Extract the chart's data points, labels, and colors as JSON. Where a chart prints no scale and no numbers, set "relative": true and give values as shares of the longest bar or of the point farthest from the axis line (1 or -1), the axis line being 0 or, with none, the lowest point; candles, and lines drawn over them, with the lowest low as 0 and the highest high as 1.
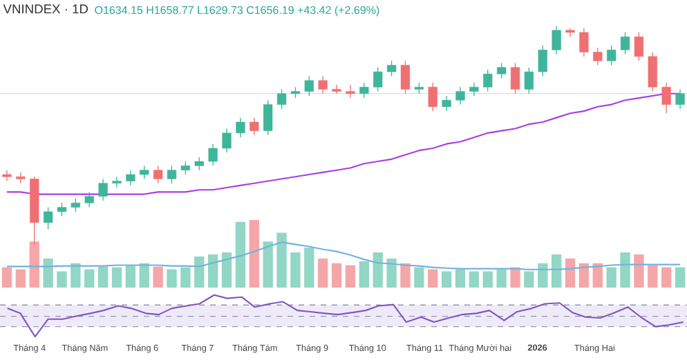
{
  "chart_data": [
    {
      "type": "candlestick",
      "relative": true,
      "title": "VNINDEX · 1D",
      "annotations": [
        "O1634.15 H1658.77 L1629.73 C1656.19 +43.42 (+2.69%)"
      ],
      "categories": [
        null,
        null,
        null,
        null,
        null,
        null,
        null,
        null,
        null,
        null,
        null,
        null,
        null,
        null,
        null,
        null,
        null,
        null,
        null,
        null,
        null,
        null,
        null,
        null,
        null,
        null,
        null,
        null,
        null,
        null,
        null,
        null,
        null,
        null,
        null,
        null,
        null,
        null,
        null,
        null,
        null,
        null,
        null,
        null,
        null,
        null,
        null,
        null,
        null,
        null
      ],
      "ohlc": [
        [
          0.32,
          0.34,
          0.29,
          0.31
        ],
        [
          0.31,
          0.33,
          0.28,
          0.3
        ],
        [
          0.3,
          0.31,
          0.0,
          0.1
        ],
        [
          0.1,
          0.17,
          0.07,
          0.15
        ],
        [
          0.15,
          0.19,
          0.13,
          0.17
        ],
        [
          0.17,
          0.21,
          0.15,
          0.19
        ],
        [
          0.19,
          0.24,
          0.17,
          0.22
        ],
        [
          0.22,
          0.3,
          0.2,
          0.28
        ],
        [
          0.28,
          0.31,
          0.26,
          0.29
        ],
        [
          0.29,
          0.34,
          0.27,
          0.32
        ],
        [
          0.32,
          0.36,
          0.3,
          0.34
        ],
        [
          0.34,
          0.36,
          0.28,
          0.3
        ],
        [
          0.3,
          0.36,
          0.28,
          0.34
        ],
        [
          0.34,
          0.38,
          0.32,
          0.36
        ],
        [
          0.36,
          0.4,
          0.34,
          0.38
        ],
        [
          0.38,
          0.46,
          0.36,
          0.44
        ],
        [
          0.44,
          0.53,
          0.42,
          0.51
        ],
        [
          0.51,
          0.58,
          0.49,
          0.56
        ],
        [
          0.56,
          0.58,
          0.5,
          0.52
        ],
        [
          0.52,
          0.66,
          0.5,
          0.64
        ],
        [
          0.64,
          0.71,
          0.62,
          0.69
        ],
        [
          0.69,
          0.72,
          0.67,
          0.7
        ],
        [
          0.7,
          0.77,
          0.68,
          0.75
        ],
        [
          0.75,
          0.77,
          0.69,
          0.71
        ],
        [
          0.71,
          0.73,
          0.69,
          0.7
        ],
        [
          0.7,
          0.73,
          0.67,
          0.69
        ],
        [
          0.69,
          0.74,
          0.67,
          0.72
        ],
        [
          0.72,
          0.81,
          0.7,
          0.79
        ],
        [
          0.79,
          0.84,
          0.77,
          0.82
        ],
        [
          0.82,
          0.84,
          0.69,
          0.71
        ],
        [
          0.71,
          0.74,
          0.69,
          0.72
        ],
        [
          0.72,
          0.74,
          0.61,
          0.63
        ],
        [
          0.63,
          0.68,
          0.61,
          0.66
        ],
        [
          0.66,
          0.72,
          0.64,
          0.7
        ],
        [
          0.7,
          0.74,
          0.68,
          0.72
        ],
        [
          0.72,
          0.8,
          0.7,
          0.78
        ],
        [
          0.78,
          0.83,
          0.76,
          0.81
        ],
        [
          0.81,
          0.83,
          0.69,
          0.71
        ],
        [
          0.71,
          0.81,
          0.69,
          0.79
        ],
        [
          0.79,
          0.91,
          0.77,
          0.89
        ],
        [
          0.89,
          1.0,
          0.87,
          0.98
        ],
        [
          0.98,
          0.99,
          0.95,
          0.97
        ],
        [
          0.97,
          0.99,
          0.86,
          0.88
        ],
        [
          0.88,
          0.9,
          0.82,
          0.84
        ],
        [
          0.84,
          0.91,
          0.82,
          0.89
        ],
        [
          0.89,
          0.97,
          0.87,
          0.95
        ],
        [
          0.95,
          0.97,
          0.84,
          0.86
        ],
        [
          0.86,
          0.88,
          0.7,
          0.72
        ],
        [
          0.72,
          0.74,
          0.6,
          0.64
        ],
        [
          0.64,
          0.71,
          0.62,
          0.69
        ]
      ],
      "colors": [
        "#ef6f72",
        "#ef6f72",
        "#ef6f72",
        "#3fb59a",
        "#3fb59a",
        "#3fb59a",
        "#3fb59a",
        "#3fb59a",
        "#3fb59a",
        "#3fb59a",
        "#3fb59a",
        "#ef6f72",
        "#3fb59a",
        "#3fb59a",
        "#3fb59a",
        "#3fb59a",
        "#3fb59a",
        "#3fb59a",
        "#ef6f72",
        "#3fb59a",
        "#3fb59a",
        "#3fb59a",
        "#3fb59a",
        "#ef6f72",
        "#ef6f72",
        "#ef6f72",
        "#3fb59a",
        "#3fb59a",
        "#3fb59a",
        "#ef6f72",
        "#3fb59a",
        "#ef6f72",
        "#3fb59a",
        "#3fb59a",
        "#3fb59a",
        "#3fb59a",
        "#3fb59a",
        "#ef6f72",
        "#3fb59a",
        "#3fb59a",
        "#3fb59a",
        "#ef6f72",
        "#ef6f72",
        "#ef6f72",
        "#3fb59a",
        "#3fb59a",
        "#ef6f72",
        "#ef6f72",
        "#ef6f72",
        "#3fb59a"
      ],
      "series": [
        {
          "type": "line",
          "color": "#a63ee6",
          "values": [
            0.24,
            0.24,
            0.23,
            0.23,
            0.23,
            0.23,
            0.23,
            0.23,
            0.23,
            0.23,
            0.23,
            0.24,
            0.24,
            0.24,
            0.25,
            0.25,
            0.26,
            0.27,
            0.28,
            0.29,
            0.3,
            0.31,
            0.32,
            0.33,
            0.34,
            0.35,
            0.37,
            0.38,
            0.39,
            0.41,
            0.43,
            0.44,
            0.46,
            0.47,
            0.49,
            0.51,
            0.52,
            0.53,
            0.55,
            0.56,
            0.58,
            0.6,
            0.61,
            0.63,
            0.64,
            0.66,
            0.67,
            0.68,
            0.69,
            0.69
          ]
        }
      ],
      "ref_lines": [
        {
          "axis": "y",
          "value": 0.69,
          "color": "#d9dde3"
        }
      ]
    },
    {
      "type": "bar",
      "relative": true,
      "categories": [
        null,
        null,
        null,
        null,
        null,
        null,
        null,
        null,
        null,
        null,
        null,
        null,
        null,
        null,
        null,
        null,
        null,
        null,
        null,
        null,
        null,
        null,
        null,
        null,
        null,
        null,
        null,
        null,
        null,
        null,
        null,
        null,
        null,
        null,
        null,
        null,
        null,
        null,
        null,
        null,
        null,
        null,
        null,
        null,
        null,
        null,
        null,
        null,
        null,
        null
      ],
      "series": [
        {
          "type": "bar",
          "values": [
            0.3,
            0.27,
            0.68,
            0.43,
            0.24,
            0.36,
            0.27,
            0.31,
            0.3,
            0.33,
            0.36,
            0.31,
            0.27,
            0.3,
            0.46,
            0.49,
            0.52,
            0.97,
            1.0,
            0.68,
            0.81,
            0.52,
            0.59,
            0.43,
            0.36,
            0.33,
            0.39,
            0.52,
            0.43,
            0.36,
            0.3,
            0.27,
            0.24,
            0.27,
            0.24,
            0.24,
            0.27,
            0.3,
            0.24,
            0.36,
            0.49,
            0.43,
            0.36,
            0.36,
            0.3,
            0.52,
            0.49,
            0.33,
            0.3,
            0.3
          ],
          "colors": [
            "#f4a6a8",
            "#f4a6a8",
            "#f4a6a8",
            "#92d6c5",
            "#92d6c5",
            "#92d6c5",
            "#92d6c5",
            "#92d6c5",
            "#92d6c5",
            "#92d6c5",
            "#92d6c5",
            "#f4a6a8",
            "#92d6c5",
            "#92d6c5",
            "#92d6c5",
            "#92d6c5",
            "#92d6c5",
            "#92d6c5",
            "#f4a6a8",
            "#92d6c5",
            "#92d6c5",
            "#92d6c5",
            "#92d6c5",
            "#f4a6a8",
            "#f4a6a8",
            "#f4a6a8",
            "#92d6c5",
            "#92d6c5",
            "#92d6c5",
            "#f4a6a8",
            "#92d6c5",
            "#f4a6a8",
            "#92d6c5",
            "#92d6c5",
            "#92d6c5",
            "#92d6c5",
            "#92d6c5",
            "#f4a6a8",
            "#92d6c5",
            "#92d6c5",
            "#92d6c5",
            "#f4a6a8",
            "#f4a6a8",
            "#f4a6a8",
            "#92d6c5",
            "#92d6c5",
            "#f4a6a8",
            "#f4a6a8",
            "#f4a6a8",
            "#92d6c5"
          ]
        }
      ]
    },
    {
      "type": "line",
      "relative": true,
      "categories": [
        null,
        null,
        null,
        null,
        null,
        null,
        null,
        null,
        null,
        null,
        null,
        null,
        null,
        null,
        null,
        null,
        null,
        null,
        null,
        null,
        null,
        null,
        null,
        null,
        null,
        null,
        null,
        null,
        null,
        null,
        null,
        null,
        null,
        null,
        null,
        null,
        null,
        null,
        null,
        null,
        null,
        null,
        null,
        null,
        null,
        null,
        null,
        null,
        null,
        null
      ],
      "series": [
        {
          "color": "#6fb3e0",
          "values": [
            0.11,
            0.11,
            0.11,
            0.11,
            0.13,
            0.13,
            0.13,
            0.13,
            0.16,
            0.16,
            0.16,
            0.16,
            0.13,
            0.13,
            0.11,
            0.24,
            0.37,
            0.5,
            0.66,
            0.84,
            1.0,
            0.92,
            0.84,
            0.74,
            0.66,
            0.53,
            0.37,
            0.24,
            0.21,
            0.16,
            0.13,
            0.08,
            0.05,
            0.03,
            0.03,
            0.03,
            0.03,
            0.03,
            0.0,
            0.0,
            0.0,
            0.03,
            0.08,
            0.11,
            0.16,
            0.18,
            0.18,
            0.18,
            0.18,
            0.18
          ]
        }
      ]
    },
    {
      "type": "line",
      "relative": true,
      "tick_labels": "x",
      "x": [
        "2025-03-20",
        "2025-03-27",
        "2025-04-04",
        "2025-04-11",
        "2025-04-19",
        "2025-04-26",
        "2025-05-04",
        "2025-05-11",
        "2025-05-19",
        "2025-05-26",
        "2025-06-03",
        "2025-06-10",
        "2025-06-17",
        "2025-06-25",
        "2025-07-02",
        "2025-07-10",
        "2025-07-17",
        "2025-07-25",
        "2025-08-01",
        "2025-08-09",
        "2025-08-16",
        "2025-08-24",
        "2025-08-31",
        "2025-09-08",
        "2025-09-15",
        "2025-09-23",
        "2025-09-30",
        "2025-10-07",
        "2025-10-15",
        "2025-10-22",
        "2025-10-30",
        "2025-11-06",
        "2025-11-14",
        "2025-11-21",
        "2025-11-29",
        "2025-12-06",
        "2025-12-14",
        "2025-12-21",
        "2025-12-29",
        "2026-01-05",
        "2026-01-13",
        "2026-01-20",
        "2026-01-27",
        "2026-02-04",
        "2026-02-11",
        "2026-02-19",
        "2026-02-26",
        "2026-03-06",
        "2026-03-13",
        "2026-03-21"
      ],
      "xlim": [
        "2025-03-16",
        "2026-03-23"
      ],
      "xticks": [
        {
          "value": "2025-04-01",
          "label": "Tháng 4"
        },
        {
          "value": "2025-05-01",
          "label": "Tháng Năm"
        },
        {
          "value": "2025-06-01",
          "label": "Tháng 6"
        },
        {
          "value": "2025-07-01",
          "label": "Tháng 7"
        },
        {
          "value": "2025-08-01",
          "label": "Tháng Tám"
        },
        {
          "value": "2025-09-01",
          "label": "Tháng 9"
        },
        {
          "value": "2025-10-01",
          "label": "Tháng 10"
        },
        {
          "value": "2025-11-01",
          "label": "Tháng 11"
        },
        {
          "value": "2025-12-01",
          "label": "Tháng Mười hai"
        },
        {
          "value": "2026-01-01",
          "label": "**2026**"
        },
        {
          "value": "2026-02-01",
          "label": "Tháng Hai"
        }
      ],
      "series": [
        {
          "color": "#7e57c2",
          "values": [
            0.68,
            0.56,
            0.0,
            0.42,
            0.42,
            0.49,
            0.56,
            0.63,
            0.74,
            0.68,
            0.56,
            0.53,
            0.68,
            0.74,
            0.79,
            1.0,
            0.92,
            0.95,
            0.71,
            0.79,
            0.84,
            0.63,
            0.6,
            0.56,
            0.53,
            0.58,
            0.63,
            0.74,
            0.77,
            0.35,
            0.47,
            0.35,
            0.45,
            0.53,
            0.56,
            0.63,
            0.39,
            0.6,
            0.68,
            0.79,
            0.81,
            0.58,
            0.47,
            0.45,
            0.56,
            0.71,
            0.47,
            0.24,
            0.28,
            0.35
          ]
        }
      ],
      "bands": [
        {
          "axis": "y",
          "from": 0.24,
          "to": 0.76,
          "color": "#efeaf8"
        }
      ],
      "ref_lines": [
        {
          "axis": "y",
          "value": 0.76,
          "color": "#9a8fb0",
          "line_style": "dashed"
        },
        {
          "axis": "y",
          "value": 0.49,
          "color": "#9a8fb0",
          "line_style": "dashed"
        },
        {
          "axis": "y",
          "value": 0.24,
          "color": "#9a8fb0",
          "line_style": "dashed"
        }
      ]
    }
  ]
}
